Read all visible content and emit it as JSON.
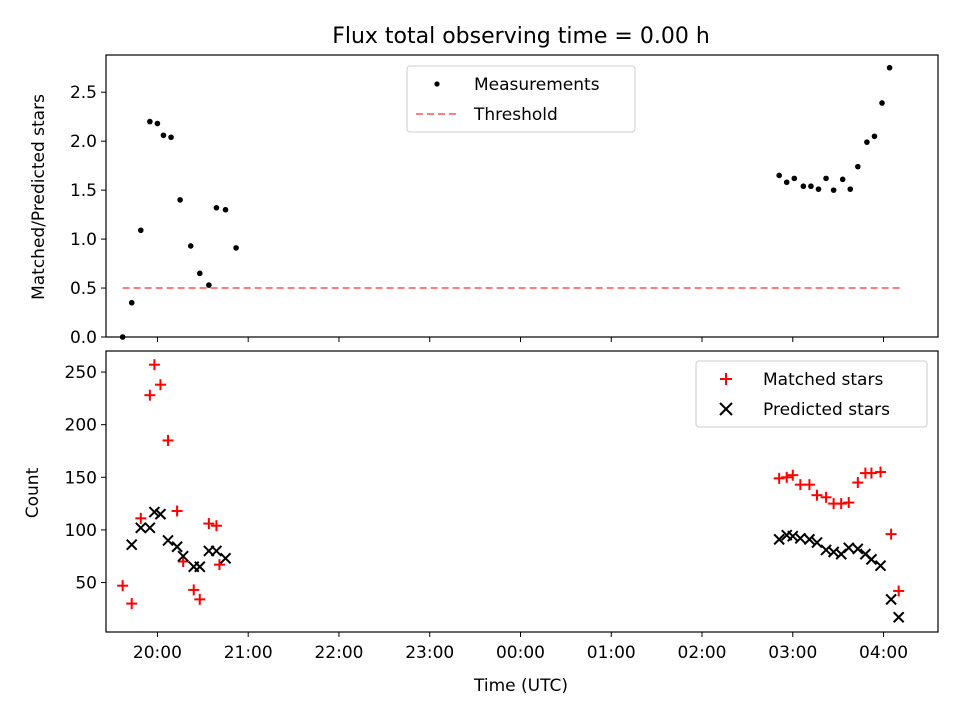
{
  "chart_data": [
    {
      "type": "scatter",
      "title": "Flux total observing time = 0.00 h",
      "xlabel": "",
      "ylabel": "Matched/Predicted stars",
      "ylim": [
        0,
        2.88
      ],
      "yticks": [
        0.0,
        0.5,
        1.0,
        1.5,
        2.0,
        2.5
      ],
      "ytick_labels": [
        "0.0",
        "0.5",
        "1.0",
        "1.5",
        "2.0",
        "2.5"
      ],
      "legend_position": "top-center",
      "grid": false,
      "series": [
        {
          "name": "Measurements",
          "kind": "dot",
          "color": "#000000",
          "x": [
            "19:37",
            "19:43",
            "19:49",
            "19:55",
            "20:00",
            "20:04",
            "20:09",
            "20:15",
            "20:22",
            "20:28",
            "20:34",
            "20:39",
            "20:45",
            "20:52",
            "20:58",
            "21:03",
            "02:51",
            "02:56",
            "03:01",
            "03:07",
            "03:12",
            "03:17",
            "03:22",
            "03:27",
            "03:33",
            "03:38",
            "03:43",
            "03:49",
            "03:54",
            "03:59",
            "04:04"
          ],
          "y": [
            0.0,
            0.35,
            1.09,
            2.2,
            2.18,
            2.06,
            2.04,
            1.4,
            0.93,
            0.65,
            0.53,
            1.32,
            1.3,
            0.91,
            null,
            null,
            1.65,
            1.58,
            1.62,
            1.54,
            1.54,
            1.51,
            1.62,
            1.5,
            1.61,
            1.51,
            1.74,
            1.99,
            2.05,
            2.39,
            2.75
          ]
        },
        {
          "name": "Threshold",
          "kind": "dashed-line",
          "color": "#ff7f7f",
          "x": [
            "19:37",
            "04:11"
          ],
          "y": [
            0.5,
            0.5
          ]
        }
      ]
    },
    {
      "type": "scatter",
      "title": "",
      "xlabel": "Time (UTC)",
      "ylabel": "Count",
      "ylim": [
        3,
        270
      ],
      "yticks": [
        50,
        100,
        150,
        200,
        250
      ],
      "ytick_labels": [
        "50",
        "100",
        "150",
        "200",
        "250"
      ],
      "xticks": [
        "20:00",
        "21:00",
        "22:00",
        "23:00",
        "00:00",
        "01:00",
        "02:00",
        "03:00",
        "04:00"
      ],
      "xlim": [
        "19:26",
        "04:36"
      ],
      "legend_position": "top-right",
      "grid": false,
      "series": [
        {
          "name": "Matched stars",
          "kind": "plus",
          "color": "#ff0000",
          "x": [
            "19:37",
            "19:43",
            "19:49",
            "19:55",
            "19:58",
            "20:02",
            "20:07",
            "20:13",
            "20:17",
            "20:24",
            "20:28",
            "20:34",
            "20:39",
            "20:41",
            "20:45",
            "02:51",
            "02:56",
            "03:00",
            "03:05",
            "03:11",
            "03:16",
            "03:22",
            "03:27",
            "03:32",
            "03:37",
            "03:43",
            "03:48",
            "03:52",
            "03:58",
            "04:05",
            "04:10"
          ],
          "y": [
            47,
            30,
            111,
            228,
            257,
            238,
            185,
            118,
            70,
            43,
            34,
            106,
            104,
            67,
            null,
            149,
            150,
            152,
            143,
            143,
            133,
            131,
            125,
            125,
            126,
            145,
            154,
            154,
            155,
            96,
            42
          ]
        },
        {
          "name": "Predicted stars",
          "kind": "x",
          "color": "#000000",
          "x": [
            "19:43",
            "19:49",
            "19:55",
            "19:58",
            "20:02",
            "20:07",
            "20:13",
            "20:17",
            "20:24",
            "20:28",
            "20:34",
            "20:39",
            "20:45",
            "02:51",
            "02:56",
            "03:00",
            "03:05",
            "03:11",
            "03:16",
            "03:22",
            "03:27",
            "03:32",
            "03:37",
            "03:43",
            "03:48",
            "03:52",
            "03:58",
            "04:05",
            "04:10"
          ],
          "y": [
            86,
            102,
            102,
            117,
            115,
            90,
            84,
            75,
            65,
            65,
            80,
            80,
            73,
            91,
            95,
            94,
            92,
            91,
            88,
            81,
            79,
            77,
            83,
            82,
            77,
            72,
            66,
            34,
            17
          ]
        }
      ]
    }
  ]
}
